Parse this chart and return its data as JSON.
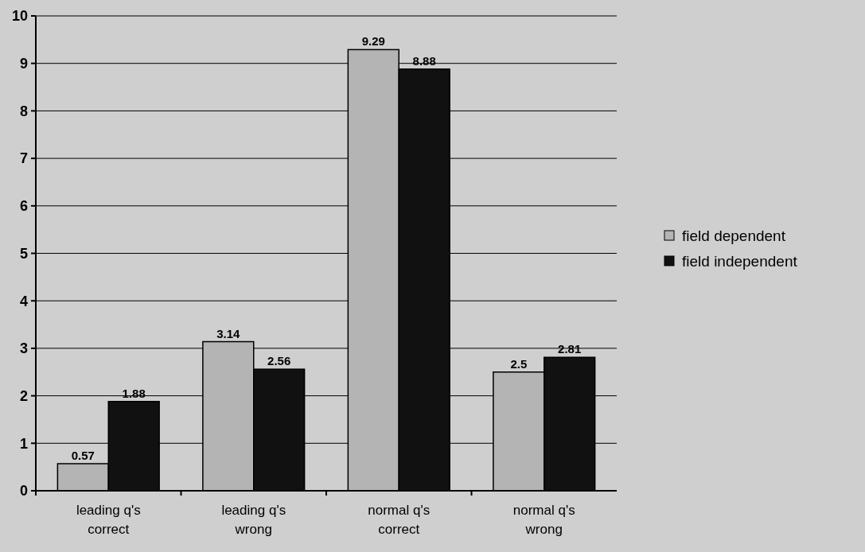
{
  "chart_data": {
    "type": "bar",
    "categories": [
      "leading q's correct",
      "leading q's wrong",
      "normal q's correct",
      "normal q's wrong"
    ],
    "series": [
      {
        "name": "field dependent",
        "color": "#b4b4b4",
        "values": [
          0.57,
          3.14,
          9.29,
          2.5
        ]
      },
      {
        "name": "field independent",
        "color": "#111111",
        "values": [
          1.88,
          2.56,
          8.88,
          2.81
        ]
      }
    ],
    "ylim": [
      0,
      10
    ],
    "yticks": [
      0,
      1,
      2,
      3,
      4,
      5,
      6,
      7,
      8,
      9,
      10
    ],
    "grid": "y",
    "legend": "right",
    "data_labels": true
  }
}
